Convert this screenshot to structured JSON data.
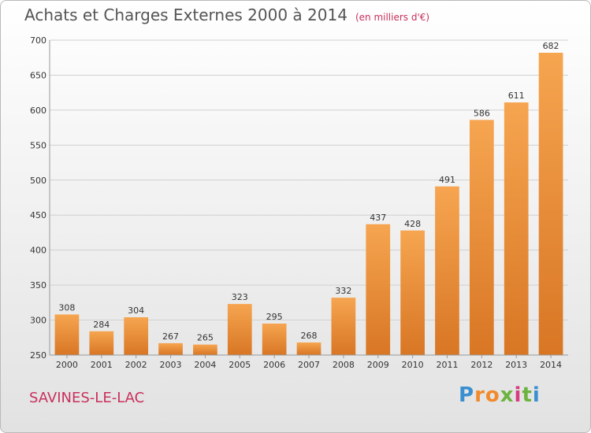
{
  "header": {
    "title": "Achats et Charges Externes 2000 à 2014",
    "subtitle": "(en milliers d'€)"
  },
  "footer": {
    "commune": "SAVINES-LE-LAC",
    "logo_letters": [
      "P",
      "r",
      "o",
      "x",
      "i",
      "t",
      "i"
    ],
    "logo_colors": [
      "#3a8fd0",
      "#f08a2c",
      "#f08a2c",
      "#6cb33f",
      "#d63c80",
      "#6cb33f",
      "#3a8fd0"
    ]
  },
  "chart_data": {
    "type": "bar",
    "title": "Achats et Charges Externes 2000 à 2014",
    "subtitle": "(en milliers d'€)",
    "categories": [
      "2000",
      "2001",
      "2002",
      "2003",
      "2004",
      "2005",
      "2006",
      "2007",
      "2008",
      "2009",
      "2010",
      "2011",
      "2012",
      "2013",
      "2014"
    ],
    "values": [
      308,
      284,
      304,
      267,
      265,
      323,
      295,
      268,
      332,
      437,
      428,
      491,
      586,
      611,
      682
    ],
    "ylim": [
      250,
      700
    ],
    "yticks": [
      250,
      300,
      350,
      400,
      450,
      500,
      550,
      600,
      650,
      700
    ],
    "grid": true,
    "bar_color_light": "#f6a550",
    "bar_color_dark": "#d87624"
  }
}
